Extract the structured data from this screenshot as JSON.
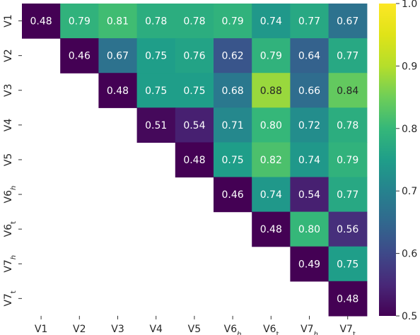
{
  "chart_data": {
    "type": "heatmap",
    "x_labels": [
      {
        "base": "V1"
      },
      {
        "base": "V2"
      },
      {
        "base": "V3"
      },
      {
        "base": "V4"
      },
      {
        "base": "V5"
      },
      {
        "base": "V6",
        "sub": "h"
      },
      {
        "base": "V6",
        "sub": "t"
      },
      {
        "base": "V7",
        "sub": "h"
      },
      {
        "base": "V7",
        "sub": "t"
      }
    ],
    "y_labels": [
      {
        "base": "V1"
      },
      {
        "base": "V2"
      },
      {
        "base": "V3"
      },
      {
        "base": "V4"
      },
      {
        "base": "V5"
      },
      {
        "base": "V6",
        "sub": "h"
      },
      {
        "base": "V6",
        "sub": "t"
      },
      {
        "base": "V7",
        "sub": "h"
      },
      {
        "base": "V7",
        "sub": "t"
      }
    ],
    "values": [
      [
        0.48,
        0.79,
        0.81,
        0.78,
        0.78,
        0.79,
        0.74,
        0.77,
        0.67
      ],
      [
        null,
        0.46,
        0.67,
        0.75,
        0.76,
        0.62,
        0.79,
        0.64,
        0.77
      ],
      [
        null,
        null,
        0.48,
        0.75,
        0.75,
        0.68,
        0.88,
        0.66,
        0.84
      ],
      [
        null,
        null,
        null,
        0.51,
        0.54,
        0.71,
        0.8,
        0.72,
        0.78
      ],
      [
        null,
        null,
        null,
        null,
        0.48,
        0.75,
        0.82,
        0.74,
        0.79
      ],
      [
        null,
        null,
        null,
        null,
        null,
        0.46,
        0.74,
        0.54,
        0.77
      ],
      [
        null,
        null,
        null,
        null,
        null,
        null,
        0.48,
        0.8,
        0.56
      ],
      [
        null,
        null,
        null,
        null,
        null,
        null,
        null,
        0.49,
        0.75
      ],
      [
        null,
        null,
        null,
        null,
        null,
        null,
        null,
        null,
        0.48
      ]
    ],
    "colorbar": {
      "min": 0.5,
      "max": 1.0,
      "ticks": [
        0.5,
        0.6,
        0.7,
        0.8,
        0.9,
        1.0
      ],
      "tick_labels": [
        "0.5",
        "0.6",
        "0.7",
        "0.8",
        "0.9",
        "1.0"
      ],
      "colormap": "viridis"
    },
    "title": "",
    "xlabel": "",
    "ylabel": "",
    "grid": false,
    "dark_text_color": "#262626",
    "light_text_color": "#ffffff"
  }
}
